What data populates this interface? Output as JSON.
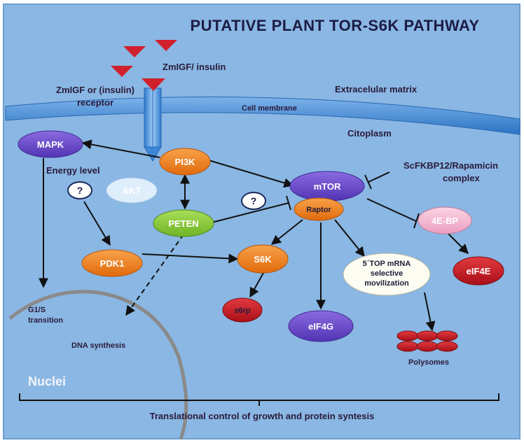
{
  "title": "PUTATIVE PLANT TOR-S6K PATHWAY",
  "labels": {
    "ligand": "ZmIGF/ insulin",
    "receptor_line1": "ZmIGF or (insulin)",
    "receptor_line2": "receptor",
    "extracellular": "Extracelular matrix",
    "membrane": "Cell membrane",
    "cytoplasm": "Citoplasm",
    "energy": "Energy  level",
    "complex_line1": "ScFKBP12/Rapamicin",
    "complex_line2": "complex",
    "g1s_line1": "G1/S",
    "g1s_line2": "transition",
    "dna": "DNA synthesis",
    "nuclei": "Nuclei",
    "polysomes": "Polysomes",
    "bottom": "Translational control of growth and protein syntesis",
    "question": "?"
  },
  "nodes": {
    "mapk": "MAPK",
    "pi3k": "PI3K",
    "akt": "AKT",
    "peten": "PETEN",
    "mtor": "mTOR",
    "raptor": "Raptor",
    "fourebp": "4E-BP",
    "eif4e": "eIF4E",
    "pdk1": "PDK1",
    "s6k": "S6K",
    "s6rp": "s6rp",
    "eif4g": "eIF4G",
    "top_line1": "5´TOP mRNA",
    "top_line2": "selective",
    "top_line3": "movilization"
  },
  "colors": {
    "background": "#8ab7e3",
    "membrane": "#3f88d4",
    "orange": "#f07c1a",
    "green": "#8ccd3a",
    "purple": "#6b48c8",
    "red": "#c4151f",
    "pink": "#f3b1cd",
    "light_blue": "#dfeefb",
    "ligand": "#d0202c"
  }
}
